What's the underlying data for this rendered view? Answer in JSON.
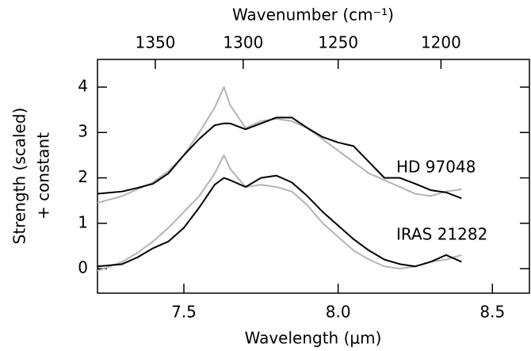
{
  "chart_data": {
    "type": "line",
    "xlabel": "Wavelength (μm)",
    "x2label": "Wavenumber (cm⁻¹)",
    "ylabel": [
      "Strength (scaled)",
      "+ constant"
    ],
    "x": [
      7.22,
      7.3,
      7.35,
      7.4,
      7.45,
      7.5,
      7.55,
      7.6,
      7.63,
      7.65,
      7.7,
      7.75,
      7.8,
      7.85,
      7.9,
      7.95,
      8.0,
      8.05,
      8.1,
      8.15,
      8.2,
      8.25,
      8.3,
      8.35,
      8.4
    ],
    "series": [
      {
        "color": "#b4b4b4",
        "values": [
          1.45,
          1.6,
          1.75,
          1.9,
          2.15,
          2.5,
          3.0,
          3.55,
          4.0,
          3.6,
          3.1,
          3.25,
          3.3,
          3.25,
          3.1,
          2.85,
          2.6,
          2.35,
          2.1,
          1.95,
          1.8,
          1.65,
          1.6,
          1.7,
          1.75
        ]
      },
      {
        "color": "#000000",
        "values": [
          1.65,
          1.7,
          1.78,
          1.87,
          2.1,
          2.5,
          2.86,
          3.16,
          3.2,
          3.2,
          3.07,
          3.2,
          3.33,
          3.33,
          3.1,
          2.9,
          2.78,
          2.7,
          2.35,
          2.0,
          2.0,
          1.87,
          1.73,
          1.68,
          1.55
        ]
      },
      {
        "color": "#b4b4b4",
        "values": [
          -0.05,
          0.15,
          0.35,
          0.6,
          0.9,
          1.25,
          1.6,
          2.1,
          2.5,
          2.2,
          1.8,
          1.85,
          1.8,
          1.7,
          1.4,
          1.0,
          0.7,
          0.4,
          0.2,
          0.05,
          0.0,
          0.05,
          0.15,
          0.2,
          0.3
        ]
      },
      {
        "color": "#000000",
        "values": [
          0.05,
          0.1,
          0.25,
          0.45,
          0.6,
          0.9,
          1.35,
          1.85,
          2.0,
          1.95,
          1.8,
          2.0,
          2.05,
          1.9,
          1.6,
          1.25,
          0.95,
          0.65,
          0.4,
          0.2,
          0.1,
          0.05,
          0.15,
          0.3,
          0.15
        ]
      }
    ],
    "annotations": [
      "HD 97048",
      "IRAS 21282"
    ],
    "xlim": [
      7.22,
      8.62
    ],
    "xticks": [
      7.5,
      {
        "value": 8,
        "label": "8.0"
      },
      8.5
    ],
    "x2scale": "reciprocal",
    "x2ticks": [
      1350,
      1300,
      1250,
      1200
    ],
    "ylim": [
      -0.54,
      4.61
    ],
    "yticks": [
      0,
      1,
      2,
      3,
      4
    ]
  }
}
